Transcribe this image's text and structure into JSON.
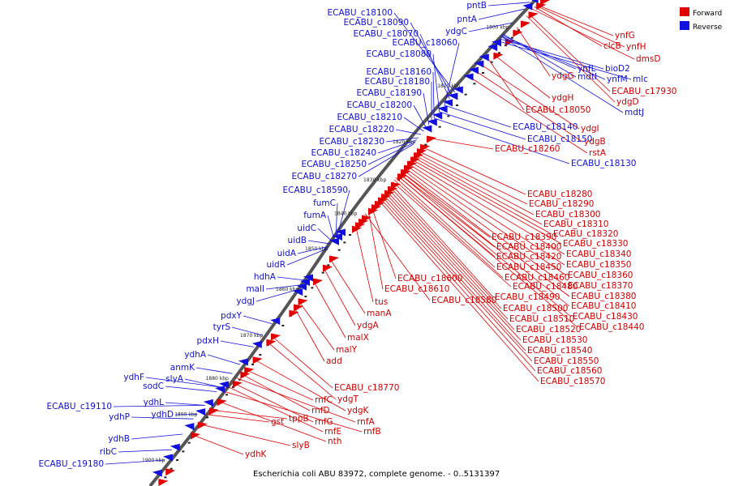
{
  "legend": {
    "forward_label": "Forward",
    "reverse_label": "Reverse",
    "forward_color": "#e00000",
    "reverse_color": "#1010e0"
  },
  "caption": "Escherichia coli ABU 83972, complete genome. - 0..5131397",
  "kbp_ticks": [
    "1800 kbp",
    "1810 kbp",
    "1820 kbp",
    "1830 kbp",
    "1840 kbp",
    "1850 kbp",
    "1860 kbp",
    "1870 kbp",
    "1880 kbp",
    "1890 kbp",
    "1900 kbp"
  ],
  "reverse_labels": [
    "ECABU_c18100",
    "ECABU_c18090",
    "ECABU_c18070",
    "ECABU_c18060",
    "ECABU_c18080",
    "pntB",
    "pntA",
    "ydgC",
    "ECABU_c18160",
    "ECABU_c18180",
    "ECABU_c18190",
    "ECABU_c18200",
    "ECABU_c18210",
    "ECABU_c18220",
    "ECABU_c18230",
    "ECABU_c18240",
    "ECABU_c18250",
    "ECABU_c18270",
    "ECABU_c18590",
    "fumC",
    "fumA",
    "uidC",
    "uidB",
    "uidA",
    "uidR",
    "hdhA",
    "malI",
    "ydgJ",
    "pdxY",
    "tyrS",
    "pdxH",
    "ydhA",
    "anmK",
    "slyA",
    "sodC",
    "ydhF",
    "ydhL",
    "ECABU_c19110",
    "ydhD",
    "ydhP",
    "ydhB",
    "ribC",
    "ECABU_c19180"
  ],
  "reverse_right_labels": [
    "ynfL",
    "bioD2",
    "mlc",
    "mdtI",
    "ynfM",
    "mdtJ",
    "ECABU_c18140",
    "ECABU_c18150",
    "ECABU_c18130"
  ],
  "forward_labels_right": [
    "ynfG",
    "ynfH",
    "clcB",
    "dmsD",
    "ydgG",
    "ECABU_c17930",
    "ydgD",
    "ydgH",
    "ECABU_c18050",
    "ydgI",
    "ydgB",
    "rstA",
    "ECABU_c18260",
    "ECABU_c18280",
    "ECABU_c18290",
    "ECABU_c18300",
    "ECABU_c18310",
    "ECABU_c18320",
    "ECABU_c18390",
    "ECABU_c18330",
    "ECABU_c18400",
    "ECABU_c18340",
    "ECABU_c18420",
    "ECABU_c18350",
    "ECABU_c18450",
    "ECABU_c18360",
    "ECABU_c18460",
    "ECABU_c18370",
    "ECABU_c18480",
    "ECABU_c18380",
    "ECABU_c18490",
    "ECABU_c18410",
    "ECABU_c18500",
    "ECABU_c18430",
    "ECABU_c18510",
    "ECABU_c18440",
    "ECABU_c18520",
    "ECABU_c18530",
    "ECABU_c18540",
    "ECABU_c18550",
    "ECABU_c18560",
    "ECABU_c18570"
  ],
  "forward_labels_mid": [
    "ECABU_c18600",
    "ECABU_c18610",
    "ECABU_c18580",
    "tus",
    "manA",
    "ydgA",
    "malX",
    "malY",
    "add",
    "ECABU_c18770",
    "ydgT",
    "ydgK",
    "rnfC",
    "rnfD",
    "rnfA",
    "rnfG",
    "rnfE",
    "rnfB",
    "nth",
    "tppB",
    "gst",
    "slyB",
    "ydhK"
  ]
}
